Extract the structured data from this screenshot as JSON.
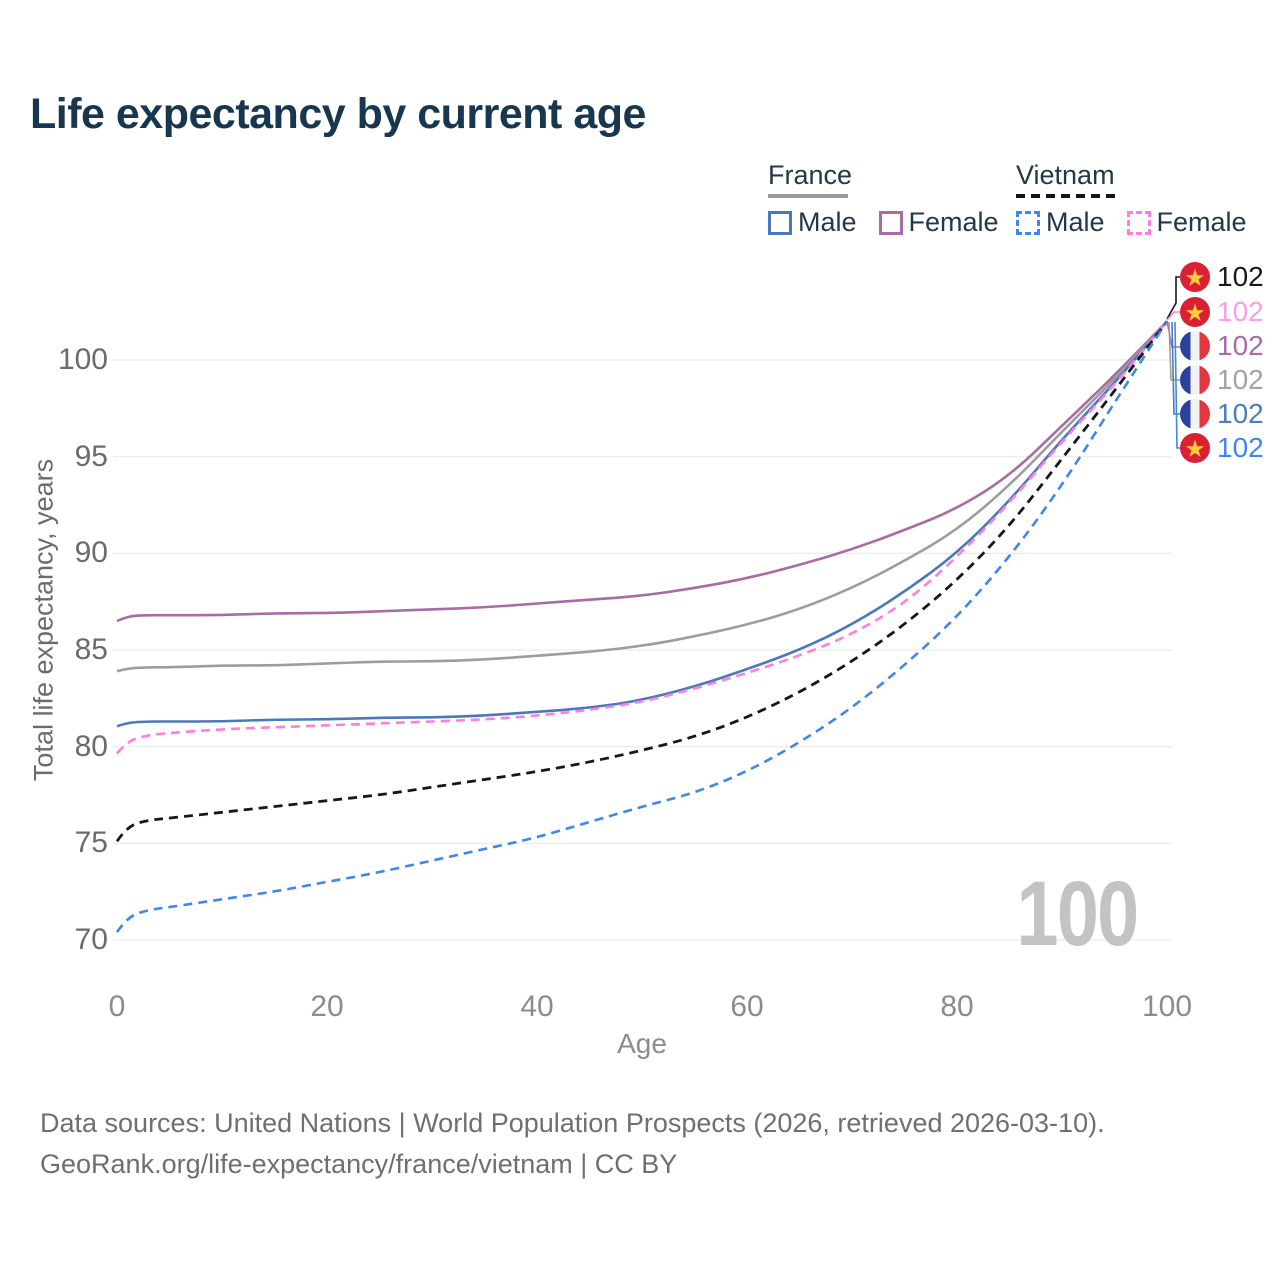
{
  "title": "Life expectancy by current age",
  "legend": {
    "groups": [
      {
        "name": "France",
        "line_style": "solid",
        "underline_color": "#9c9c9c",
        "items": [
          {
            "label": "Male",
            "color": "#4a79bb",
            "dashed": false
          },
          {
            "label": "Female",
            "color": "#a86ba6",
            "dashed": false
          }
        ]
      },
      {
        "name": "Vietnam",
        "line_style": "dashed",
        "underline_color": "#151515",
        "items": [
          {
            "label": "Male",
            "color": "#3f86f0",
            "dashed": true
          },
          {
            "label": "Female",
            "color": "#ff7de1",
            "dashed": true
          }
        ]
      }
    ]
  },
  "chart_data": {
    "type": "line",
    "title": "Life expectancy by current age",
    "xlabel": "Age",
    "ylabel": "Total life expectancy, years",
    "xlim": [
      0,
      100
    ],
    "ylim": [
      68.5,
      103
    ],
    "xticks": [
      0,
      20,
      40,
      60,
      80,
      100
    ],
    "yticks": [
      100,
      95,
      90,
      85,
      80,
      75,
      70
    ],
    "grid": true,
    "legend_position": "top-right",
    "watermark": "100",
    "x": [
      0,
      1,
      3,
      5,
      10,
      15,
      20,
      25,
      30,
      35,
      40,
      45,
      50,
      55,
      60,
      65,
      70,
      75,
      80,
      85,
      90,
      95,
      100
    ],
    "series": [
      {
        "name": "France Female",
        "color": "#a86ba6",
        "dashed": false,
        "values": [
          86.5,
          86.75,
          86.8,
          86.8,
          86.8,
          86.9,
          86.9,
          87.0,
          87.1,
          87.2,
          87.4,
          87.6,
          87.8,
          88.2,
          88.7,
          89.4,
          90.2,
          91.2,
          92.3,
          94.0,
          96.6,
          99.2,
          102
        ]
      },
      {
        "name": "France Both sexes",
        "color": "#9d9d9d",
        "dashed": false,
        "values": [
          83.9,
          84.05,
          84.1,
          84.1,
          84.2,
          84.2,
          84.3,
          84.4,
          84.4,
          84.5,
          84.7,
          84.9,
          85.2,
          85.7,
          86.3,
          87.1,
          88.2,
          89.6,
          91.2,
          93.5,
          96.3,
          99.0,
          102
        ]
      },
      {
        "name": "France Male",
        "color": "#4a79bb",
        "dashed": false,
        "values": [
          81.05,
          81.25,
          81.3,
          81.3,
          81.3,
          81.4,
          81.4,
          81.5,
          81.5,
          81.6,
          81.8,
          82.0,
          82.4,
          83.1,
          84.0,
          85.0,
          86.3,
          88.0,
          90.0,
          92.7,
          95.9,
          98.8,
          102
        ]
      },
      {
        "name": "Vietnam Female",
        "color": "#ff7de1",
        "dashed": true,
        "values": [
          79.65,
          80.3,
          80.6,
          80.7,
          80.9,
          81.0,
          81.1,
          81.2,
          81.3,
          81.4,
          81.6,
          81.9,
          82.3,
          83.0,
          83.8,
          84.7,
          85.8,
          87.4,
          89.8,
          92.6,
          95.8,
          98.7,
          102
        ]
      },
      {
        "name": "Vietnam Both sexes",
        "color": "#171717",
        "dashed": true,
        "values": [
          75.1,
          75.9,
          76.2,
          76.3,
          76.6,
          76.9,
          77.2,
          77.5,
          77.9,
          78.3,
          78.7,
          79.2,
          79.8,
          80.5,
          81.5,
          82.8,
          84.4,
          86.3,
          88.6,
          91.4,
          94.9,
          98.4,
          102
        ]
      },
      {
        "name": "Vietnam Male",
        "color": "#3f86f0",
        "dashed": true,
        "values": [
          70.4,
          71.2,
          71.55,
          71.7,
          72.1,
          72.5,
          73.0,
          73.5,
          74.1,
          74.7,
          75.3,
          76.1,
          76.9,
          77.6,
          78.7,
          80.2,
          82.0,
          84.2,
          86.7,
          89.8,
          93.5,
          97.8,
          102
        ]
      }
    ]
  },
  "end_labels": [
    {
      "flag": "vietnam",
      "value": "102",
      "color": "#191919"
    },
    {
      "flag": "vietnam",
      "value": "102",
      "color": "#ff9ce6"
    },
    {
      "flag": "france",
      "value": "102",
      "color": "#a86ba6"
    },
    {
      "flag": "france",
      "value": "102",
      "color": "#a3a3a3"
    },
    {
      "flag": "france",
      "value": "102",
      "color": "#4a7dbf"
    },
    {
      "flag": "vietnam",
      "value": "102",
      "color": "#3f86f0"
    }
  ],
  "footer": {
    "line1": "Data sources: United Nations | World Population Prospects (2026, retrieved 2026-03-10).",
    "line2": "GeoRank.org/life-expectancy/france/vietnam | CC BY"
  }
}
